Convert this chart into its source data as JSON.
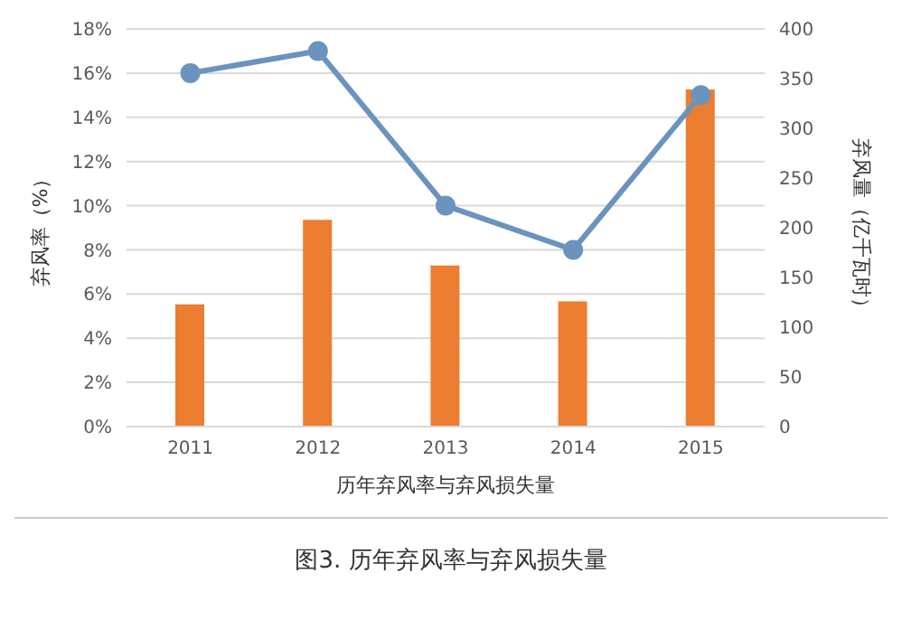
{
  "chart_data": {
    "type": "bar",
    "xlabel": "历年弃风率与弃风损失量",
    "ylabel": "弃风率（%）",
    "y2label": "弃风量（亿千瓦时）",
    "categories": [
      "2011",
      "2012",
      "2013",
      "2014",
      "2015"
    ],
    "series": [
      {
        "axis": "y2",
        "color": "#ed7d31",
        "values": [
          123,
          208,
          162,
          126,
          339
        ]
      },
      {
        "type": "line",
        "axis": "y",
        "color": "#6a93bd",
        "values": [
          16,
          17,
          10,
          8,
          15
        ],
        "marker": "circle"
      }
    ],
    "ylim": [
      0,
      18
    ],
    "yticks": [
      {
        "value": 0,
        "label": "0%"
      },
      {
        "value": 2,
        "label": "2%"
      },
      {
        "value": 4,
        "label": "4%"
      },
      {
        "value": 6,
        "label": "6%"
      },
      {
        "value": 8,
        "label": "8%"
      },
      {
        "value": 10,
        "label": "10%"
      },
      {
        "value": 12,
        "label": "12%"
      },
      {
        "value": 14,
        "label": "14%"
      },
      {
        "value": 16,
        "label": "16%"
      },
      {
        "value": 18,
        "label": "18%"
      }
    ],
    "y2lim": [
      0,
      400
    ],
    "y2ticks": [
      0,
      50,
      100,
      150,
      200,
      250,
      300,
      350,
      400
    ],
    "grid": "y",
    "legend": false,
    "annotations": [
      "图3. 历年弃风率与弃风损失量"
    ]
  }
}
